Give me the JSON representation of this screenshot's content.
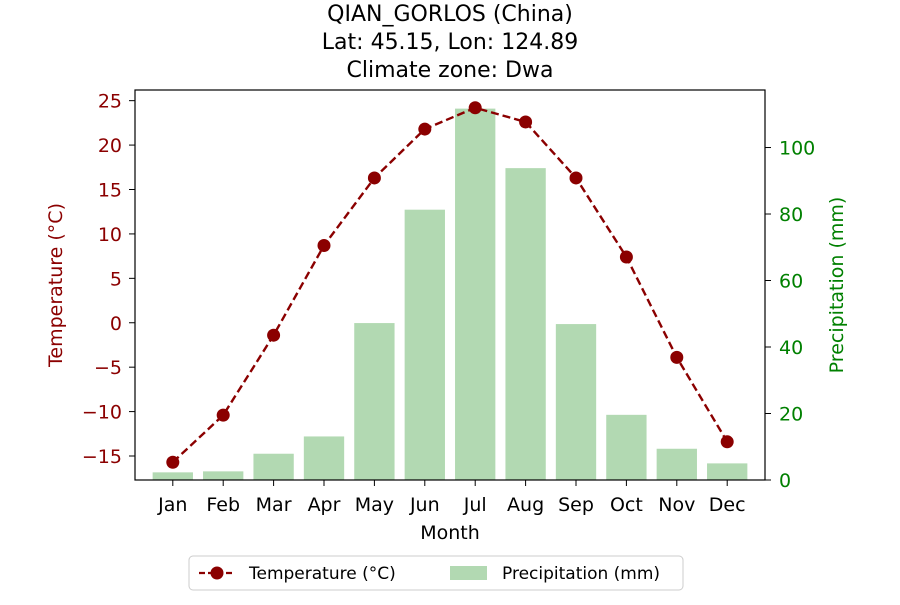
{
  "title_lines": [
    "QIAN_GORLOS (China)",
    "Lat: 45.15, Lon: 124.89",
    "Climate zone: Dwa"
  ],
  "colors": {
    "temperature": "#8b0000",
    "precipitation": "#b2d9b2",
    "precip_axis": "#008000"
  },
  "chart_data": {
    "type": "bar",
    "categories": [
      "Jan",
      "Feb",
      "Mar",
      "Apr",
      "May",
      "Jun",
      "Jul",
      "Aug",
      "Sep",
      "Oct",
      "Nov",
      "Dec"
    ],
    "series": [
      {
        "name": "Temperature (°C)",
        "type": "line",
        "axis": "left",
        "values": [
          -15.7,
          -10.4,
          -1.4,
          8.7,
          16.3,
          21.8,
          24.2,
          22.6,
          16.3,
          7.4,
          -3.9,
          -13.4
        ]
      },
      {
        "name": "Precipitation (mm)",
        "type": "bar",
        "axis": "right",
        "values": [
          2.3,
          2.6,
          7.9,
          13.1,
          47.2,
          81.3,
          111.7,
          93.8,
          46.9,
          19.6,
          9.4,
          5.0
        ]
      }
    ],
    "xlabel": "Month",
    "ylabel_left": "Temperature (°C)",
    "ylabel_right": "Precipitation (mm)",
    "ylim_left": [
      -17.7,
      26.2
    ],
    "ylim_right": [
      0,
      117.3
    ],
    "yticks_left": [
      -15,
      -10,
      -5,
      0,
      5,
      10,
      15,
      20,
      25
    ],
    "yticks_right": [
      0,
      20,
      40,
      60,
      80,
      100
    ],
    "yticks_left_labels": [
      "−15",
      "−10",
      "−5",
      "0",
      "5",
      "10",
      "15",
      "20",
      "25"
    ],
    "yticks_right_labels": [
      "0",
      "20",
      "40",
      "60",
      "80",
      "100"
    ],
    "legend": {
      "placement": "bottom-center",
      "entries": [
        "Temperature (°C)",
        "Precipitation (mm)"
      ]
    },
    "grid": false
  }
}
